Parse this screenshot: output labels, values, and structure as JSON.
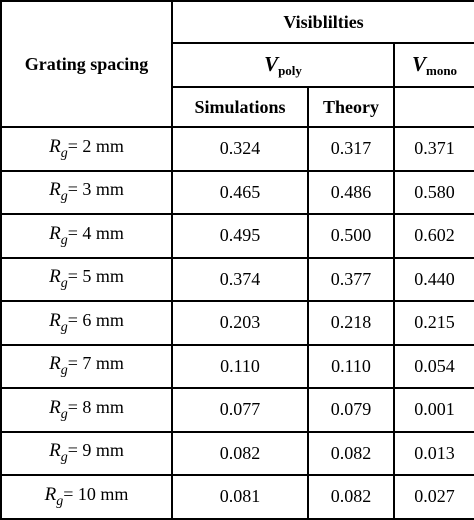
{
  "table": {
    "grating_header": "Grating spacing",
    "visibilities_header": "Visiblilties",
    "vpoly": {
      "symbol": "V",
      "subscript": "poly"
    },
    "vmono": {
      "symbol": "V",
      "subscript": "mono"
    },
    "simulations_header": "Simulations",
    "theory_header": "Theory",
    "row_symbol": "R",
    "row_subscript": "g",
    "rows": [
      {
        "spacing": "= 2 mm",
        "simulations": "0.324",
        "theory": "0.317",
        "mono": "0.371"
      },
      {
        "spacing": "= 3 mm",
        "simulations": "0.465",
        "theory": "0.486",
        "mono": "0.580"
      },
      {
        "spacing": "= 4 mm",
        "simulations": "0.495",
        "theory": "0.500",
        "mono": "0.602"
      },
      {
        "spacing": "= 5 mm",
        "simulations": "0.374",
        "theory": "0.377",
        "mono": "0.440"
      },
      {
        "spacing": "= 6 mm",
        "simulations": "0.203",
        "theory": "0.218",
        "mono": "0.215"
      },
      {
        "spacing": "= 7 mm",
        "simulations": "0.110",
        "theory": "0.110",
        "mono": "0.054"
      },
      {
        "spacing": "= 8 mm",
        "simulations": "0.077",
        "theory": "0.079",
        "mono": "0.001"
      },
      {
        "spacing": "= 9 mm",
        "simulations": "0.082",
        "theory": "0.082",
        "mono": "0.013"
      },
      {
        "spacing": "= 10 mm",
        "simulations": "0.081",
        "theory": "0.082",
        "mono": "0.027"
      }
    ]
  }
}
